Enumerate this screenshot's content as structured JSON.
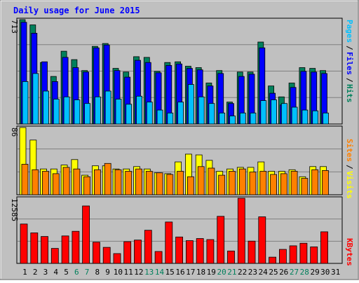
{
  "title": "Daily usage for June 2015",
  "colors": {
    "hits": "#00805c",
    "files": "#0000ff",
    "pages": "#00c0ff",
    "visits": "#ffff00",
    "sites": "#ff8000",
    "kbytes": "#ff0000",
    "title": "#0000ff",
    "background": "#c0c0c0",
    "weekend_label": "#00805c",
    "weekday_label": "#000000"
  },
  "panels": {
    "top": {
      "ymax_label": "713",
      "legend": [
        "Pages",
        "Files",
        "Hits"
      ]
    },
    "middle": {
      "ymax_label": "86",
      "legend": [
        "Sites",
        "Visits"
      ]
    },
    "bottom": {
      "ymax_label": "12585",
      "legend": [
        "KBytes"
      ]
    }
  },
  "chart_data": {
    "type": "bar",
    "title": "Daily usage for June 2015",
    "categories": [
      "1",
      "2",
      "3",
      "4",
      "5",
      "6",
      "7",
      "8",
      "9",
      "10",
      "11",
      "12",
      "13",
      "14",
      "15",
      "16",
      "17",
      "18",
      "19",
      "20",
      "21",
      "22",
      "23",
      "24",
      "25",
      "26",
      "27",
      "28",
      "29",
      "30",
      "31"
    ],
    "weekend_days": [
      "6",
      "7",
      "13",
      "14",
      "20",
      "21",
      "27",
      "28"
    ],
    "panels": [
      {
        "name": "top",
        "ylim": [
          0,
          713
        ],
        "series": [
          {
            "name": "Hits",
            "values": [
              713,
              677,
              420,
              325,
              497,
              440,
              365,
              530,
              550,
              380,
              355,
              460,
              455,
              360,
              420,
              425,
              395,
              385,
              280,
              365,
              150,
              355,
              355,
              560,
              260,
              185,
              280,
              385,
              380,
              365,
              0
            ]
          },
          {
            "name": "Files",
            "values": [
              695,
              620,
              425,
              290,
              455,
              385,
              355,
              520,
              540,
              365,
              320,
              435,
              420,
              350,
              400,
              410,
              380,
              370,
              260,
              345,
              140,
              325,
              340,
              520,
              210,
              130,
              250,
              360,
              355,
              345,
              0
            ]
          },
          {
            "name": "Pages",
            "values": [
              290,
              345,
              225,
              170,
              185,
              165,
              140,
              185,
              225,
              170,
              135,
              190,
              150,
              95,
              75,
              150,
              270,
              185,
              140,
              75,
              55,
              75,
              75,
              160,
              165,
              140,
              115,
              95,
              90,
              75,
              0
            ]
          }
        ]
      },
      {
        "name": "middle",
        "ylim": [
          0,
          86
        ],
        "series": [
          {
            "name": "Visits",
            "values": [
              86,
              70,
              33,
              33,
              38,
              45,
              25,
              37,
              37,
              33,
              33,
              36,
              33,
              28,
              27,
              42,
              52,
              51,
              44,
              30,
              33,
              35,
              35,
              42,
              30,
              30,
              32,
              23,
              36,
              36,
              0
            ]
          },
          {
            "name": "Sites",
            "values": [
              39,
              32,
              30,
              27,
              35,
              33,
              23,
              32,
              40,
              32,
              30,
              33,
              30,
              28,
              26,
              30,
              23,
              36,
              34,
              25,
              30,
              33,
              29,
              30,
              26,
              27,
              30,
              21,
              32,
              31,
              0
            ]
          }
        ]
      },
      {
        "name": "bottom",
        "ylim": [
          0,
          12585
        ],
        "series": [
          {
            "name": "KBytes",
            "values": [
              7600,
              5900,
              5200,
              2900,
              5300,
              6200,
              11100,
              4100,
              3100,
              1900,
              4200,
              4500,
              6400,
              2300,
              8000,
              5100,
              4400,
              4800,
              4600,
              9100,
              2400,
              12585,
              4300,
              9000,
              1200,
              2700,
              3400,
              3900,
              3200,
              6100,
              0
            ]
          }
        ]
      }
    ],
    "xlabel": "",
    "ylabel": ""
  }
}
